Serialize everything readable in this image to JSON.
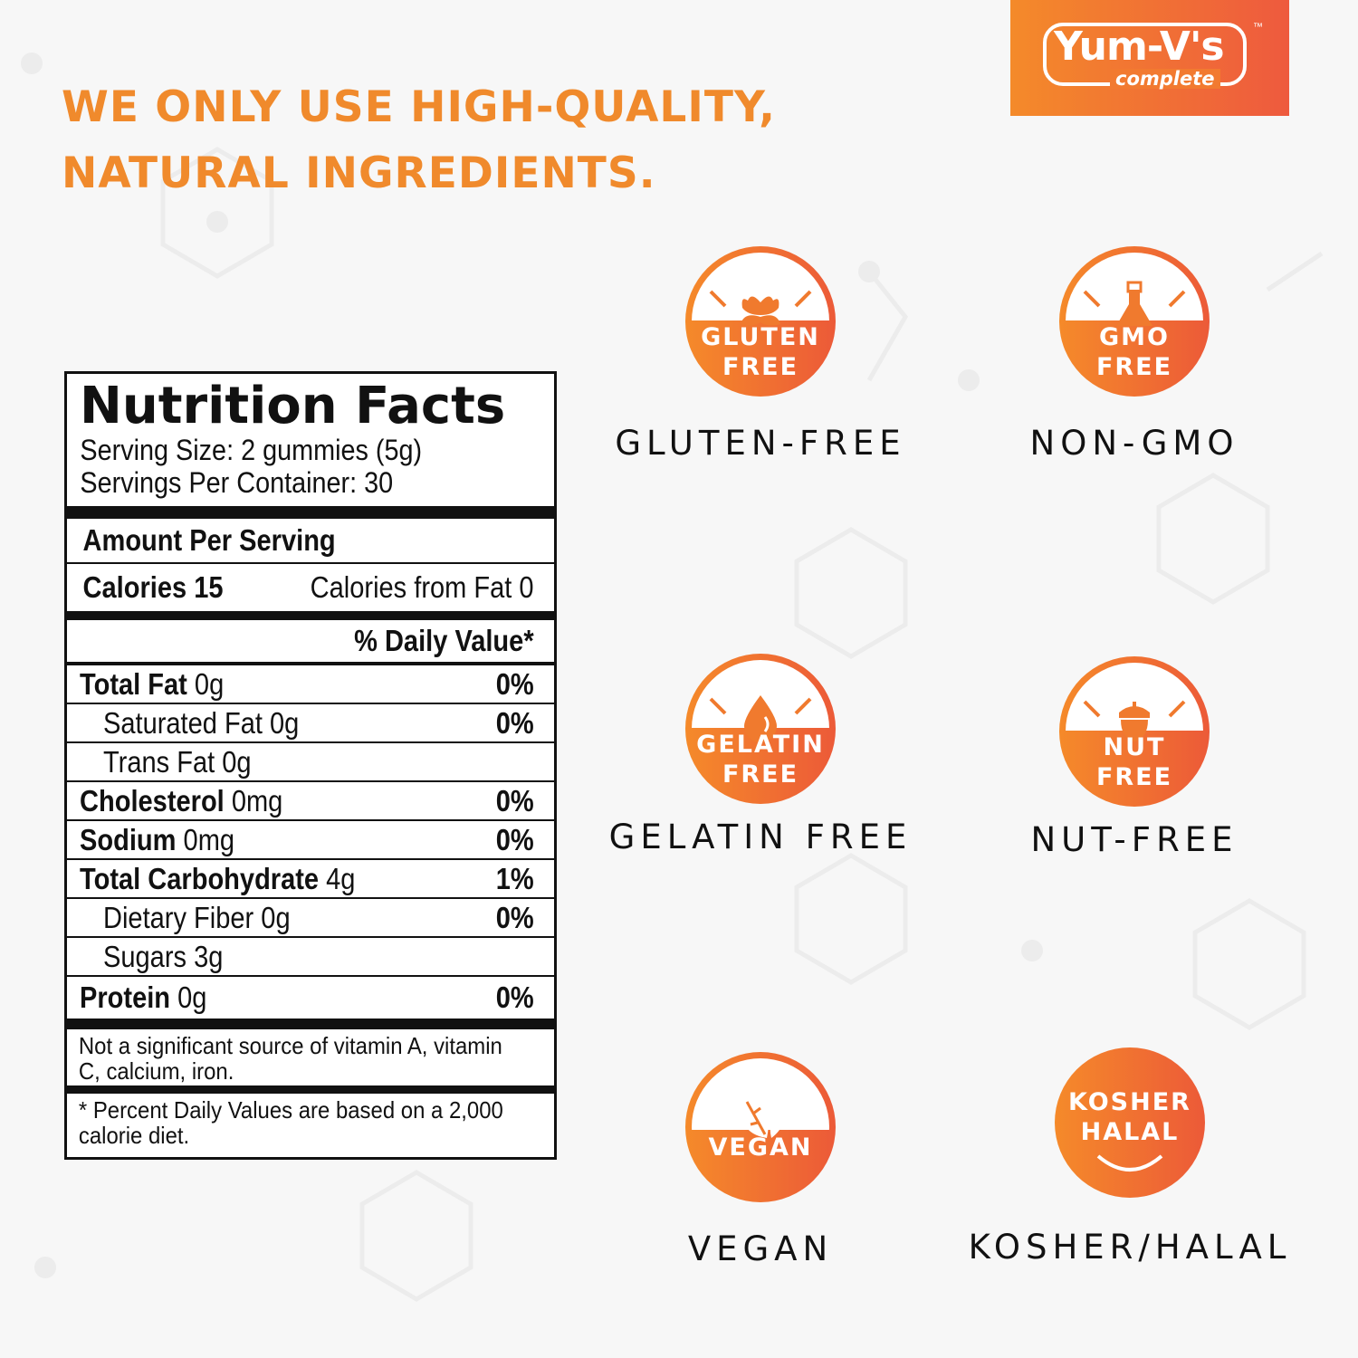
{
  "headline": {
    "line1": "WE ONLY USE HIGH-QUALITY,",
    "line2": "NATURAL INGREDIENTS."
  },
  "logo": {
    "brand": "Yum-V's",
    "sub": "complete",
    "tm": "™"
  },
  "colors": {
    "accent": "#f08a2c",
    "gradient_start": "#f58a2a",
    "gradient_end": "#ec5a38"
  },
  "nutrition": {
    "title": "Nutrition Facts",
    "serving_size": "Serving Size: 2 gummies (5g)",
    "servings_per_container": "Servings Per Container: 30",
    "amount_per_serving": "Amount Per Serving",
    "calories": "Calories 15",
    "calories_from_fat": "Calories from Fat 0",
    "dv_header": "% Daily Value*",
    "rows": [
      {
        "name": "Total Fat",
        "amount": "0g",
        "dv": "0%"
      },
      {
        "name": "Saturated Fat",
        "amount": "0g",
        "dv": "0%"
      },
      {
        "name": "Trans Fat",
        "amount": "0g",
        "dv": ""
      },
      {
        "name": "Cholesterol",
        "amount": "0mg",
        "dv": "0%"
      },
      {
        "name": "Sodium",
        "amount": "0mg",
        "dv": "0%"
      },
      {
        "name": "Total Carbohydrate",
        "amount": "4g",
        "dv": "1%"
      },
      {
        "name": "Dietary Fiber",
        "amount": "0g",
        "dv": "0%"
      },
      {
        "name": "Sugars",
        "amount": "3g",
        "dv": ""
      },
      {
        "name": "Protein",
        "amount": "0g",
        "dv": "0%"
      }
    ],
    "note": "Not a significant source of vitamin A, vitamin C, calcium, iron.",
    "footnote": "* Percent Daily Values are based on a 2,000 calorie diet."
  },
  "badges": [
    {
      "icon": "flower-icon",
      "line1": "GLUTEN",
      "line2": "FREE",
      "caption": "GLUTEN-FREE"
    },
    {
      "icon": "flask-icon",
      "line1": "GMO",
      "line2": "FREE",
      "caption": "NON-GMO"
    },
    {
      "icon": "drop-icon",
      "line1": "GELATIN",
      "line2": "FREE",
      "caption": "GELATIN FREE"
    },
    {
      "icon": "acorn-icon",
      "line1": "NUT",
      "line2": "FREE",
      "caption": "NUT-FREE"
    },
    {
      "icon": "leaf-icon",
      "line1": "VEGAN",
      "line2": "",
      "caption": "VEGAN"
    },
    {
      "icon": "smile-icon",
      "line1": "KOSHER",
      "line2": "HALAL",
      "caption": "KOSHER/HALAL"
    }
  ]
}
